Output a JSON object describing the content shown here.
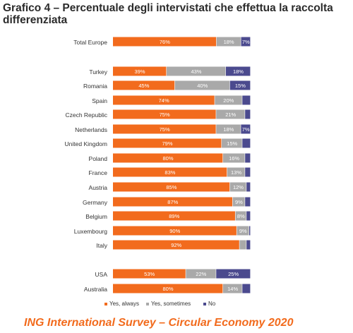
{
  "title": "Grafico 4 – Percentuale degli intervistati che effettua la raccolta differenziata",
  "footer": "ING International Survey – Circular Economy 2020",
  "chart_data": {
    "type": "bar",
    "orientation": "horizontal",
    "stacked": true,
    "categories": [
      "Total Europe",
      "Turkey",
      "Romania",
      "Spain",
      "Czech Republic",
      "Netherlands",
      "United Kingdom",
      "Poland",
      "France",
      "Austria",
      "Germany",
      "Belgium",
      "Luxembourg",
      "Italy",
      "USA",
      "Australia"
    ],
    "series": [
      {
        "name": "Yes, always",
        "color": "#f26b1d",
        "values": [
          76,
          39,
          45,
          74,
          75,
          75,
          79,
          80,
          83,
          85,
          87,
          89,
          90,
          92,
          53,
          80
        ],
        "labels": [
          "76%",
          "39%",
          "45%",
          "74%",
          "75%",
          "75%",
          "79%",
          "80%",
          "83%",
          "85%",
          "87%",
          "89%",
          "90%",
          "92%",
          "53%",
          "80%"
        ]
      },
      {
        "name": "Yes, sometimes",
        "color": "#a9a9a9",
        "values": [
          18,
          43,
          40,
          20,
          21,
          18,
          15,
          16,
          13,
          12,
          9,
          8,
          9,
          5,
          22,
          14
        ],
        "labels": [
          "18%",
          "43%",
          "40%",
          "20%",
          "21%",
          "18%",
          "15%",
          "16%",
          "13%",
          "12%",
          "9%",
          "8%",
          "9%",
          "",
          "22%",
          "14%"
        ]
      },
      {
        "name": "No",
        "color": "#4b4a8e",
        "values": [
          7,
          18,
          15,
          6,
          4,
          7,
          6,
          4,
          4,
          3,
          4,
          3,
          1,
          3,
          25,
          6
        ],
        "labels": [
          "7%",
          "18%",
          "15%",
          "",
          "",
          "7%",
          "",
          "",
          "",
          "",
          "",
          "",
          "",
          "",
          "25%",
          ""
        ]
      }
    ],
    "xlim": [
      0,
      100
    ],
    "legend": "bottom",
    "grid": false
  }
}
